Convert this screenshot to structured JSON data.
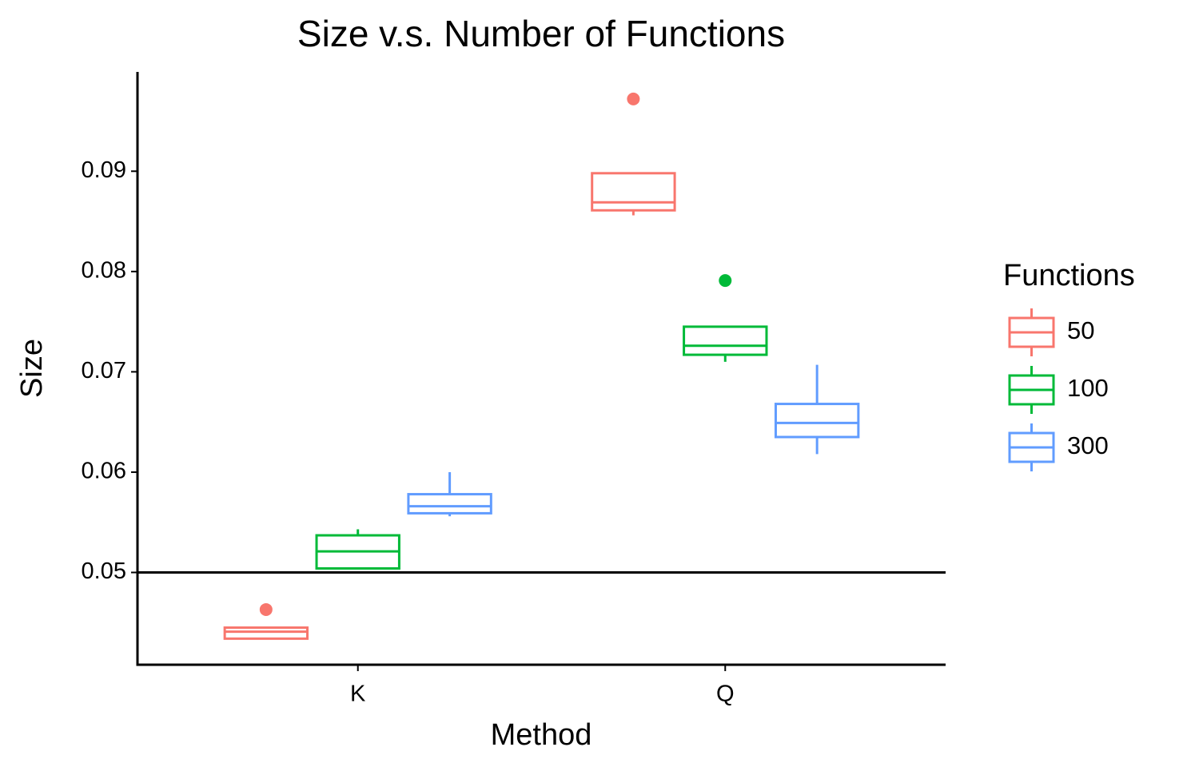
{
  "chart_data": {
    "type": "boxplot",
    "title": "Size v.s. Number of Functions",
    "x_label": "Method",
    "y_label": "Size",
    "categories": [
      "K",
      "Q"
    ],
    "ylim": [
      0.0408,
      0.0999
    ],
    "yticks": [
      0.05,
      0.06,
      0.07,
      0.08,
      0.09
    ],
    "hline": 0.05,
    "legend_title": "Functions",
    "legend_position": "right",
    "series": [
      {
        "name": "50",
        "color": "#F8766D",
        "boxes": [
          {
            "min": 0.0434,
            "q1": 0.0434,
            "median": 0.0441,
            "q3": 0.0445,
            "max": 0.0445,
            "outliers": [
              0.0463
            ]
          },
          {
            "min": 0.0856,
            "q1": 0.0861,
            "median": 0.0869,
            "q3": 0.0898,
            "max": 0.0898,
            "outliers": [
              0.0972
            ]
          }
        ]
      },
      {
        "name": "100",
        "color": "#00BA38",
        "boxes": [
          {
            "min": 0.0504,
            "q1": 0.0504,
            "median": 0.0521,
            "q3": 0.0537,
            "max": 0.0543,
            "outliers": []
          },
          {
            "min": 0.071,
            "q1": 0.0717,
            "median": 0.0726,
            "q3": 0.0745,
            "max": 0.0745,
            "outliers": [
              0.0791
            ]
          }
        ]
      },
      {
        "name": "300",
        "color": "#619CFF",
        "boxes": [
          {
            "min": 0.0556,
            "q1": 0.0559,
            "median": 0.0566,
            "q3": 0.0578,
            "max": 0.06,
            "outliers": []
          },
          {
            "min": 0.0618,
            "q1": 0.0635,
            "median": 0.0649,
            "q3": 0.0668,
            "max": 0.0707,
            "outliers": []
          }
        ]
      }
    ]
  }
}
